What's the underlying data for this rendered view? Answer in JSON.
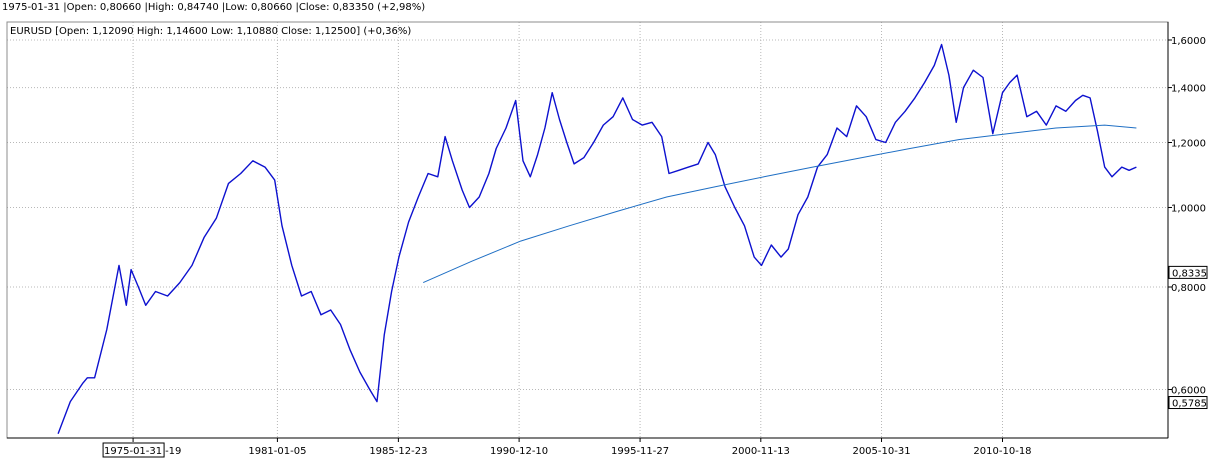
{
  "header": {
    "bar_info": "1975-01-31 |Open: 0,80660 |High: 0,84740 |Low: 0,80660 |Close: 0,83350 (+2,98%)"
  },
  "chart_data": {
    "type": "line",
    "title": "",
    "scale": "log",
    "legend": {
      "placement": "top-left",
      "text": "EURUSD [Open: 1,12090  High: 1,14600  Low: 1,10880  Close: 1,12500] (+0,36%)"
    },
    "grid": true,
    "xlim": [
      1969.9,
      2017.6
    ],
    "ylim": [
      0.5,
      1.65
    ],
    "y_ticks": [
      {
        "value": 0.6,
        "label": "0,6000"
      },
      {
        "value": 0.8,
        "label": "0,8000"
      },
      {
        "value": 1.0,
        "label": "1,0000"
      },
      {
        "value": 1.2,
        "label": "1,2000"
      },
      {
        "value": 1.4,
        "label": "1,4000"
      },
      {
        "value": 1.6,
        "label": "1,6000"
      }
    ],
    "x_ticks": [
      {
        "value": 1975.08,
        "label": "1975-01-31"
      },
      {
        "value": 1981.01,
        "label": "1981-01-05"
      },
      {
        "value": 1985.98,
        "label": "1985-12-23"
      },
      {
        "value": 1990.94,
        "label": "1990-12-10"
      },
      {
        "value": 1995.91,
        "label": "1995-11-27"
      },
      {
        "value": 2000.87,
        "label": "2000-11-13"
      },
      {
        "value": 2005.83,
        "label": "2005-10-31"
      },
      {
        "value": 2010.8,
        "label": "2010-10-18"
      }
    ],
    "x_cursor": {
      "value": 1975.08,
      "label": "1975-01-31",
      "hidden_suffix": "-19"
    },
    "price_markers": [
      {
        "value": 0.8335,
        "label": "0,8335"
      },
      {
        "value": 0.5785,
        "label": "0,5785"
      }
    ],
    "series": [
      {
        "role": "price",
        "color": "#0d11cf",
        "x": [
          1972.0,
          1972.5,
          1973.0,
          1973.2,
          1973.5,
          1974.0,
          1974.5,
          1974.8,
          1975.0,
          1975.3,
          1975.6,
          1976.0,
          1976.5,
          1977.0,
          1977.5,
          1978.0,
          1978.5,
          1979.0,
          1979.5,
          1980.0,
          1980.5,
          1980.9,
          1981.2,
          1981.6,
          1982.0,
          1982.4,
          1982.8,
          1983.2,
          1983.6,
          1984.0,
          1984.4,
          1984.8,
          1985.1,
          1985.4,
          1985.7,
          1986.0,
          1986.4,
          1986.8,
          1987.2,
          1987.6,
          1987.9,
          1988.2,
          1988.6,
          1988.9,
          1989.3,
          1989.7,
          1990.0,
          1990.4,
          1990.8,
          1991.1,
          1991.4,
          1991.7,
          1992.0,
          1992.3,
          1992.6,
          1992.9,
          1993.2,
          1993.6,
          1994.0,
          1994.4,
          1994.8,
          1995.2,
          1995.6,
          1996.0,
          1996.4,
          1996.8,
          1997.1,
          1997.5,
          1997.9,
          1998.3,
          1998.7,
          1999.0,
          1999.4,
          1999.8,
          2000.2,
          2000.6,
          2000.9,
          2001.3,
          2001.7,
          2002.0,
          2002.4,
          2002.8,
          2003.2,
          2003.6,
          2004.0,
          2004.4,
          2004.8,
          2005.2,
          2005.6,
          2006.0,
          2006.4,
          2006.8,
          2007.2,
          2007.6,
          2008.0,
          2008.3,
          2008.6,
          2008.9,
          2009.2,
          2009.6,
          2010.0,
          2010.4,
          2010.8,
          2011.1,
          2011.4,
          2011.8,
          2012.2,
          2012.6,
          2013.0,
          2013.4,
          2013.8,
          2014.1,
          2014.4,
          2014.7,
          2015.0,
          2015.3,
          2015.7,
          2016.0,
          2016.3
        ],
        "values": [
          0.53,
          0.58,
          0.61,
          0.62,
          0.62,
          0.71,
          0.85,
          0.76,
          0.84,
          0.8,
          0.76,
          0.79,
          0.78,
          0.81,
          0.85,
          0.92,
          0.97,
          1.07,
          1.1,
          1.14,
          1.12,
          1.08,
          0.95,
          0.85,
          0.78,
          0.79,
          0.74,
          0.75,
          0.72,
          0.67,
          0.63,
          0.6,
          0.58,
          0.7,
          0.79,
          0.87,
          0.96,
          1.03,
          1.1,
          1.09,
          1.22,
          1.14,
          1.05,
          1.0,
          1.03,
          1.1,
          1.18,
          1.25,
          1.35,
          1.14,
          1.09,
          1.16,
          1.25,
          1.38,
          1.28,
          1.2,
          1.13,
          1.15,
          1.2,
          1.26,
          1.29,
          1.36,
          1.28,
          1.26,
          1.27,
          1.22,
          1.1,
          1.11,
          1.12,
          1.13,
          1.2,
          1.16,
          1.06,
          1.0,
          0.95,
          0.87,
          0.85,
          0.9,
          0.87,
          0.89,
          0.98,
          1.03,
          1.12,
          1.16,
          1.25,
          1.22,
          1.33,
          1.29,
          1.21,
          1.2,
          1.27,
          1.31,
          1.36,
          1.42,
          1.49,
          1.58,
          1.45,
          1.27,
          1.4,
          1.47,
          1.44,
          1.23,
          1.38,
          1.42,
          1.45,
          1.29,
          1.31,
          1.26,
          1.33,
          1.31,
          1.35,
          1.37,
          1.36,
          1.24,
          1.12,
          1.09,
          1.12,
          1.11,
          1.12
        ]
      },
      {
        "role": "moving-average",
        "color": "#1f6fc4",
        "x": [
          1987.0,
          1989.0,
          1991.0,
          1993.0,
          1995.0,
          1997.0,
          1999.0,
          2001.0,
          2003.0,
          2005.0,
          2007.0,
          2009.0,
          2011.0,
          2013.0,
          2015.0,
          2016.3
        ],
        "values": [
          0.81,
          0.86,
          0.91,
          0.95,
          0.99,
          1.03,
          1.06,
          1.09,
          1.12,
          1.15,
          1.18,
          1.21,
          1.23,
          1.25,
          1.26,
          1.25
        ]
      }
    ]
  }
}
